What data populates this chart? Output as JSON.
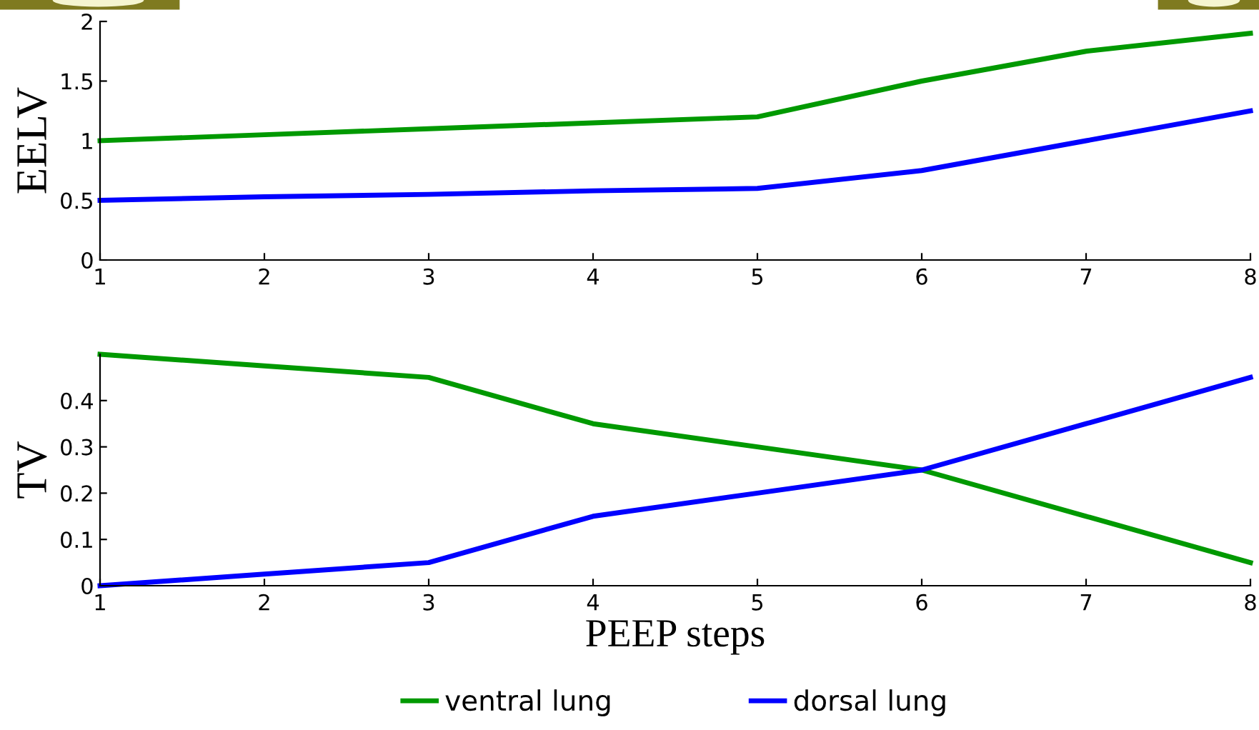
{
  "chart_data": [
    {
      "type": "line",
      "ylabel": "EELV",
      "x": [
        1,
        2,
        3,
        4,
        5,
        6,
        7,
        8
      ],
      "xlim": [
        1,
        8
      ],
      "xticks": [
        1,
        2,
        3,
        4,
        5,
        6,
        7,
        8
      ],
      "ylim": [
        0,
        2
      ],
      "yticks": [
        0,
        0.5,
        1,
        1.5,
        2
      ],
      "grid": false,
      "legend": false,
      "series": [
        {
          "color": "#009900",
          "values": [
            1,
            1.05,
            1.1,
            1.15,
            1.2,
            1.5,
            1.75,
            1.9
          ]
        },
        {
          "color": "#0000ff",
          "values": [
            0.5,
            0.53,
            0.55,
            0.58,
            0.6,
            0.75,
            1.0,
            1.25
          ]
        }
      ]
    },
    {
      "type": "line",
      "ylabel": "TV",
      "xlabel": "PEEP steps",
      "x": [
        1,
        2,
        3,
        4,
        5,
        6,
        7,
        8
      ],
      "xlim": [
        1,
        8
      ],
      "xticks": [
        1,
        2,
        3,
        4,
        5,
        6,
        7,
        8
      ],
      "ylim": [
        0,
        0.5
      ],
      "yticks": [
        0,
        0.1,
        0.2,
        0.3,
        0.4
      ],
      "grid": false,
      "legend": "bottom",
      "series": [
        {
          "name": "ventral lung",
          "color": "#009900",
          "values": [
            0.5,
            0.475,
            0.45,
            0.35,
            0.3,
            0.25,
            0.15,
            0.05
          ]
        },
        {
          "name": "dorsal lung",
          "color": "#0000ff",
          "values": [
            0,
            0.025,
            0.05,
            0.15,
            0.2,
            0.25,
            0.35,
            0.45
          ]
        }
      ]
    }
  ]
}
